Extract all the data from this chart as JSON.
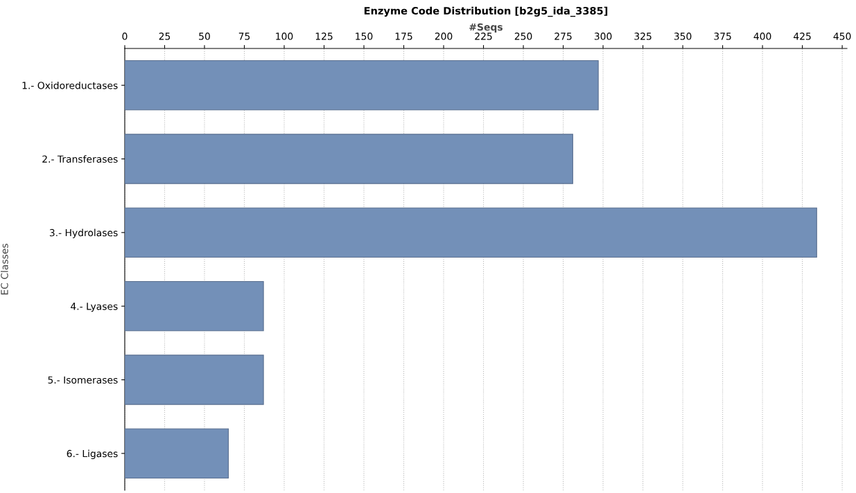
{
  "chart_data": {
    "type": "bar",
    "orientation": "horizontal",
    "title": "Enzyme Code Distribution [b2g5_ida_3385]",
    "xlabel": "#Seqs",
    "ylabel": "EC Classes",
    "categories": [
      "1.- Oxidoreductases",
      "2.- Transferases",
      "3.- Hydrolases",
      "4.- Lyases",
      "5.- Isomerases",
      "6.- Ligases"
    ],
    "values": [
      297,
      281,
      434,
      87,
      87,
      65
    ],
    "color": "#7390b8",
    "xlim": [
      0,
      453
    ],
    "xticks": [
      0,
      25,
      50,
      75,
      100,
      125,
      150,
      175,
      200,
      225,
      250,
      275,
      300,
      325,
      350,
      375,
      400,
      425,
      450
    ],
    "grid": "x"
  }
}
